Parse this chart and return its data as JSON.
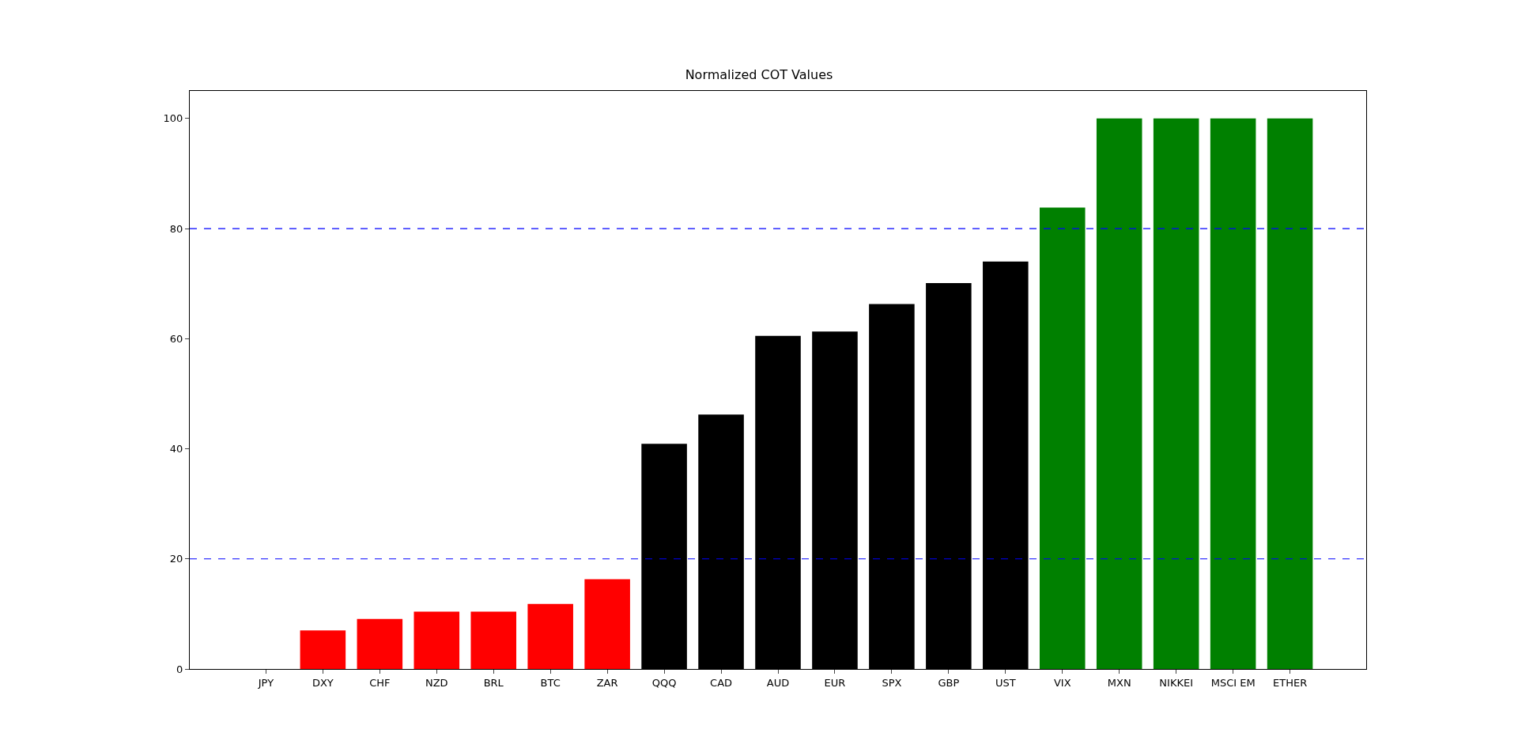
{
  "chart_data": {
    "type": "bar",
    "title": "Normalized COT Values",
    "categories": [
      "JPY",
      "DXY",
      "CHF",
      "NZD",
      "BRL",
      "BTC",
      "ZAR",
      "QQQ",
      "CAD",
      "AUD",
      "EUR",
      "SPX",
      "GBP",
      "UST",
      "VIX",
      "MXN",
      "NIKKEI",
      "MSCI EM",
      "ETHER"
    ],
    "values": [
      0,
      7.0,
      9.1,
      10.4,
      10.4,
      11.8,
      16.3,
      40.9,
      46.2,
      60.5,
      61.3,
      66.3,
      70.1,
      74.0,
      83.8,
      100,
      100,
      100,
      100
    ],
    "colors": [
      "#ff0000",
      "#ff0000",
      "#ff0000",
      "#ff0000",
      "#ff0000",
      "#ff0000",
      "#ff0000",
      "#000000",
      "#000000",
      "#000000",
      "#000000",
      "#000000",
      "#000000",
      "#000000",
      "#008000",
      "#008000",
      "#008000",
      "#008000",
      "#008000"
    ],
    "ylim": [
      0,
      105
    ],
    "yticks": [
      0,
      20,
      40,
      60,
      80,
      100
    ],
    "ref_lines": [
      {
        "axis": "y",
        "value": 20,
        "color": "#0000ff",
        "line_style": "dashed"
      },
      {
        "axis": "y",
        "value": 80,
        "color": "#0000ff",
        "line_style": "dashed"
      }
    ]
  }
}
